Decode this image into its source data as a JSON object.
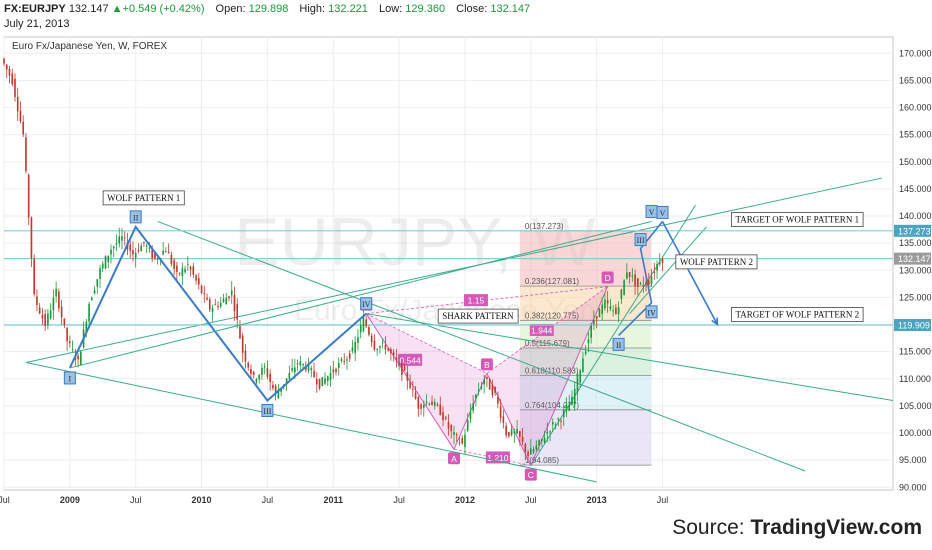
{
  "header": {
    "symbol": "FX:EURJPY",
    "last": "132.147",
    "change": "+0.549 (+0.42%)",
    "open_label": "Open:",
    "open": "129.898",
    "high_label": "High:",
    "high": "132.221",
    "low_label": "Low:",
    "low": "129.360",
    "close_label": "Close:",
    "close": "132.147",
    "date": "July 21, 2013"
  },
  "chart_title": "Euro Fx/Japanese Yen, W, FOREX",
  "watermark": {
    "symbol": "EURJPY, W",
    "name": "Euro Fx/Japanese Yen"
  },
  "source": {
    "prefix": "Source: ",
    "brand": "TradingView.com"
  },
  "colors": {
    "up": "#1a9a3a",
    "down": "#c0392b",
    "pattern": "#3b7bc4",
    "trend": "#3aab8c",
    "hline": "#7fd0d8",
    "shark": "#d659b8"
  },
  "chart_data": {
    "type": "candlestick",
    "title": "Euro Fx/Japanese Yen, W, FOREX",
    "y_ticks": [
      90,
      95,
      100,
      105,
      110,
      115,
      120,
      125,
      130,
      135,
      140,
      145,
      150,
      155,
      160,
      165,
      170
    ],
    "y_tick_labels": [
      "90.000",
      "95.000",
      "100.000",
      "105.000",
      "110.000",
      "115.000",
      "120.000",
      "125.000",
      "130.000",
      "135.000",
      "140.000",
      "145.000",
      "150.000",
      "155.000",
      "160.000",
      "165.000",
      "170.000"
    ],
    "ylim": [
      89.5,
      173
    ],
    "x_ticks": [
      "2008-07",
      "2009-01",
      "2009-07",
      "2010-01",
      "2010-07",
      "2011-01",
      "2011-07",
      "2012-01",
      "2012-07",
      "2013-01",
      "2013-07"
    ],
    "x_tick_labels": [
      "Jul",
      "2009",
      "Jul",
      "2010",
      "Jul",
      "2011",
      "Jul",
      "2012",
      "Jul",
      "2013",
      "Jul"
    ],
    "xlim": [
      "2008-07",
      "2015-04"
    ],
    "price_path": [
      [
        "2008-07",
        169
      ],
      [
        "2008-08",
        165
      ],
      [
        "2008-09",
        155
      ],
      [
        "2008-10",
        125
      ],
      [
        "2008-11",
        120
      ],
      [
        "2008-12",
        126
      ],
      [
        "2009-01",
        117
      ],
      [
        "2009-02",
        113
      ],
      [
        "2009-03",
        124
      ],
      [
        "2009-04",
        130
      ],
      [
        "2009-05",
        134
      ],
      [
        "2009-06",
        136
      ],
      [
        "2009-07",
        133
      ],
      [
        "2009-08",
        135
      ],
      [
        "2009-09",
        132
      ],
      [
        "2009-10",
        134
      ],
      [
        "2009-11",
        129
      ],
      [
        "2009-12",
        131
      ],
      [
        "2010-01",
        127
      ],
      [
        "2010-02",
        123
      ],
      [
        "2010-03",
        124
      ],
      [
        "2010-04",
        126
      ],
      [
        "2010-05",
        115
      ],
      [
        "2010-06",
        110
      ],
      [
        "2010-07",
        112
      ],
      [
        "2010-08",
        107
      ],
      [
        "2010-09",
        110
      ],
      [
        "2010-10",
        113
      ],
      [
        "2010-11",
        112
      ],
      [
        "2010-12",
        109
      ],
      [
        "2011-01",
        111
      ],
      [
        "2011-02",
        113
      ],
      [
        "2011-03",
        115
      ],
      [
        "2011-04",
        121
      ],
      [
        "2011-05",
        116
      ],
      [
        "2011-06",
        116
      ],
      [
        "2011-07",
        113
      ],
      [
        "2011-08",
        110
      ],
      [
        "2011-09",
        105
      ],
      [
        "2011-10",
        106
      ],
      [
        "2011-11",
        104
      ],
      [
        "2011-12",
        100
      ],
      [
        "2012-01",
        98
      ],
      [
        "2012-02",
        106
      ],
      [
        "2012-03",
        110
      ],
      [
        "2012-04",
        107
      ],
      [
        "2012-05",
        100
      ],
      [
        "2012-06",
        100
      ],
      [
        "2012-07",
        96
      ],
      [
        "2012-08",
        98
      ],
      [
        "2012-09",
        101
      ],
      [
        "2012-10",
        103
      ],
      [
        "2012-11",
        106
      ],
      [
        "2012-12",
        114
      ],
      [
        "2013-01",
        121
      ],
      [
        "2013-02",
        124
      ],
      [
        "2013-03",
        122
      ],
      [
        "2013-04",
        130
      ],
      [
        "2013-05",
        127
      ],
      [
        "2013-06",
        128
      ],
      [
        "2013-07",
        132.147
      ]
    ],
    "horizontal_lines": [
      {
        "price": 137.273,
        "label": "137.273",
        "note": "TARGET OF WOLF PATTERN 1"
      },
      {
        "price": 132.147,
        "label": "132.147"
      },
      {
        "price": 119.909,
        "label": "119.909",
        "note": "TARGET OF WOLF PATTERN 2"
      }
    ],
    "wolf_pattern_1": {
      "label": "WOLF PATTERN 1",
      "points": [
        {
          "name": "I",
          "x": "2009-01",
          "y": 112
        },
        {
          "name": "II",
          "x": "2009-07",
          "y": 138
        },
        {
          "name": "III",
          "x": "2010-07",
          "y": 106
        },
        {
          "name": "IV",
          "x": "2011-04",
          "y": 122
        },
        {
          "name": "V",
          "x": "2013-06",
          "y": 139
        }
      ]
    },
    "wolf_pattern_2": {
      "label": "WOLF PATTERN 2",
      "points": [
        {
          "name": "II",
          "x": "2013-03",
          "y": 118
        },
        {
          "name": "IV",
          "x": "2013-06",
          "y": 124
        },
        {
          "name": "III",
          "x": "2013-05",
          "y": 134
        },
        {
          "name": "V",
          "x": "2013-07",
          "y": 139
        }
      ]
    },
    "shark_pattern": {
      "label": "SHARK PATTERN",
      "points": [
        {
          "name": "X",
          "x": "2011-04",
          "y": 122
        },
        {
          "name": "A",
          "x": "2011-12",
          "y": 97
        },
        {
          "name": "B",
          "x": "2012-03",
          "y": 111
        },
        {
          "name": "C",
          "x": "2012-07",
          "y": 94
        },
        {
          "name": "D",
          "x": "2013-02",
          "y": 127
        }
      ],
      "ratios": [
        {
          "text": "0.544",
          "x": "2011-08",
          "y": 113.5
        },
        {
          "text": "1.210",
          "x": "2012-04",
          "y": 95.5
        },
        {
          "text": "1.15",
          "x": "2012-02",
          "y": 124.5
        },
        {
          "text": "1.944",
          "x": "2012-08",
          "y": 119
        }
      ]
    },
    "fibonacci": {
      "levels": [
        {
          "ratio": "0(137.273)",
          "price": 137.273
        },
        {
          "ratio": "0.236(127.081)",
          "price": 127.081
        },
        {
          "ratio": "0.382(120.775)",
          "price": 120.775
        },
        {
          "ratio": "0.5(115.679)",
          "price": 115.679
        },
        {
          "ratio": "0.618(110.583)",
          "price": 110.583
        },
        {
          "ratio": "0.764(104.277)",
          "price": 104.277
        },
        {
          "ratio": "1(94.085)",
          "price": 94.085
        }
      ],
      "x_start": "2012-06",
      "x_end": "2013-06"
    },
    "trend_lines": [
      {
        "from": [
          "2008-09",
          113
        ],
        "to": [
          "2015-03",
          147
        ]
      },
      {
        "from": [
          "2008-09",
          113
        ],
        "to": [
          "2013-01",
          91
        ]
      },
      {
        "from": [
          "2009-09",
          139
        ],
        "to": [
          "2014-08",
          93
        ]
      },
      {
        "from": [
          "2011-04",
          122
        ],
        "to": [
          "2015-04",
          106
        ]
      },
      {
        "from": [
          "2012-07",
          94
        ],
        "to": [
          "2013-10",
          142
        ]
      },
      {
        "from": [
          "2013-04",
          122
        ],
        "to": [
          "2013-11",
          138
        ]
      }
    ],
    "projection_arrows": [
      {
        "from": [
          "2013-07",
          139
        ],
        "to": [
          "2013-12",
          120
        ]
      }
    ],
    "grid": true
  }
}
